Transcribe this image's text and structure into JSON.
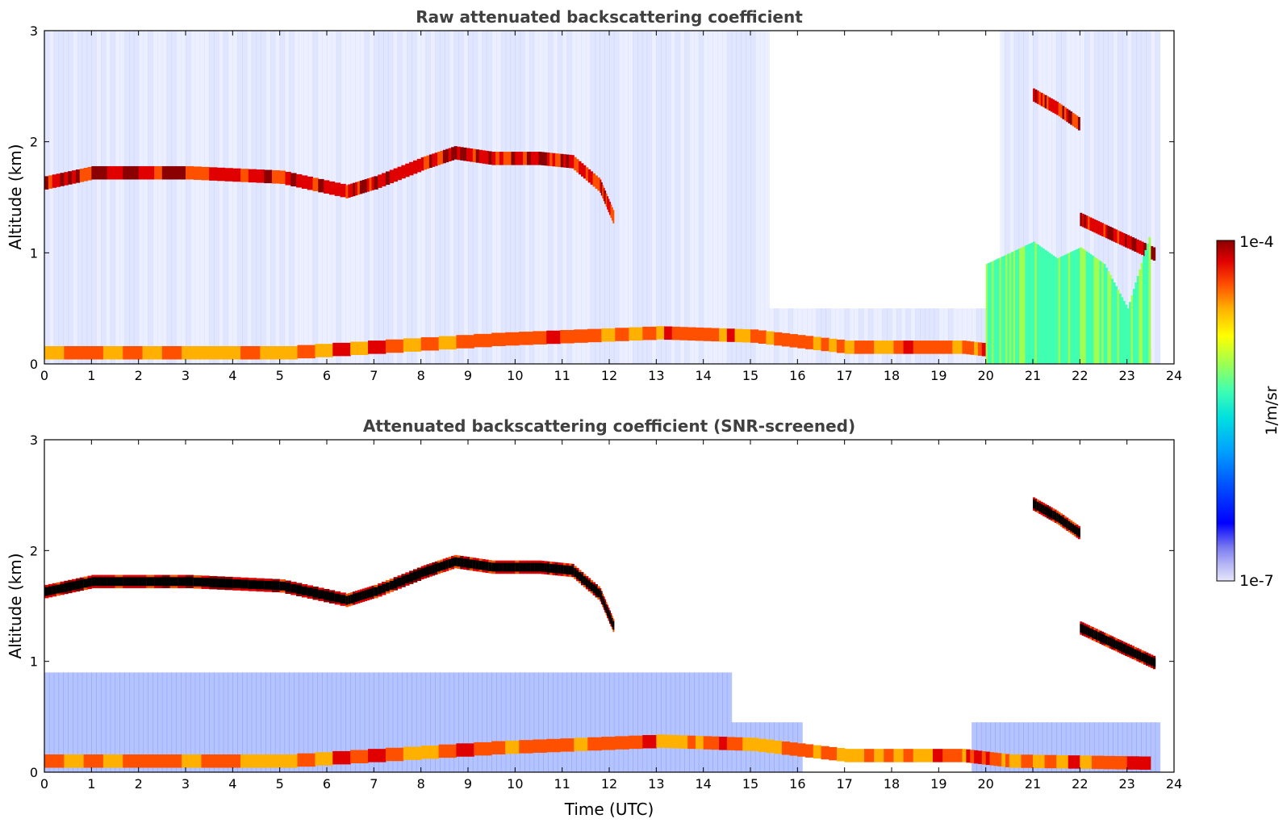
{
  "chart_data": [
    {
      "type": "heatmap",
      "title": "Raw attenuated backscattering coefficient",
      "xlabel": "",
      "ylabel": "Altitude (km)",
      "xlim": [
        0,
        24
      ],
      "ylim": [
        0,
        3
      ],
      "xticks": [
        "0",
        "1",
        "2",
        "3",
        "4",
        "5",
        "6",
        "7",
        "8",
        "9",
        "10",
        "11",
        "12",
        "13",
        "14",
        "15",
        "16",
        "17",
        "18",
        "19",
        "20",
        "21",
        "22",
        "23",
        "24"
      ],
      "yticks": [
        "0",
        "1",
        "2",
        "3"
      ],
      "features": [
        {
          "name": "boundary-layer cloud top",
          "x": [
            0,
            1,
            3,
            5,
            6.4,
            7,
            8,
            8.7,
            9.5,
            10.5,
            11.2,
            11.8,
            12.1
          ],
          "y": [
            1.63,
            1.72,
            1.72,
            1.68,
            1.55,
            1.63,
            1.8,
            1.9,
            1.85,
            1.85,
            1.82,
            1.6,
            1.3
          ],
          "intensity": 1.0
        },
        {
          "name": "upper cloud 21-22h",
          "x": [
            21.0,
            21.5,
            22.0
          ],
          "y": [
            2.42,
            2.3,
            2.15
          ],
          "intensity": 1.0
        },
        {
          "name": "mid cloud 22-23.7h",
          "x": [
            22.0,
            22.5,
            23.0,
            23.6
          ],
          "y": [
            1.3,
            1.2,
            1.1,
            0.98
          ],
          "intensity": 1.0
        },
        {
          "name": "near-surface layer",
          "x": [
            0,
            5,
            9.5,
            13,
            15,
            17,
            19.5,
            20.5,
            23.5
          ],
          "y": [
            0.1,
            0.1,
            0.22,
            0.28,
            0.25,
            0.15,
            0.15,
            0.1,
            0.08
          ],
          "intensity": 0.9
        },
        {
          "name": "precipitation 20-23.7h",
          "x": [
            20.0,
            20.5,
            21.0,
            21.5,
            22.0,
            22.5,
            23.0,
            23.5
          ],
          "y": [
            0.9,
            1.0,
            1.1,
            0.95,
            1.05,
            0.9,
            0.5,
            1.2
          ],
          "intensity": 0.6
        }
      ]
    },
    {
      "type": "heatmap",
      "title": "Attenuated backscattering coefficient (SNR-screened)",
      "xlabel": "Time (UTC)",
      "ylabel": "Altitude (km)",
      "xlim": [
        0,
        24
      ],
      "ylim": [
        0,
        3
      ],
      "xticks": [
        "0",
        "1",
        "2",
        "3",
        "4",
        "5",
        "6",
        "7",
        "8",
        "9",
        "10",
        "11",
        "12",
        "13",
        "14",
        "15",
        "16",
        "17",
        "18",
        "19",
        "20",
        "21",
        "22",
        "23",
        "24"
      ],
      "yticks": [
        "0",
        "1",
        "2",
        "3"
      ],
      "features": [
        {
          "name": "boundary-layer cloud top",
          "x": [
            0,
            1,
            3,
            5,
            6.4,
            7,
            8,
            8.7,
            9.5,
            10.5,
            11.2,
            11.8,
            12.1
          ],
          "y": [
            1.63,
            1.72,
            1.72,
            1.68,
            1.55,
            1.63,
            1.8,
            1.9,
            1.85,
            1.85,
            1.82,
            1.6,
            1.3
          ],
          "intensity": 1.0
        },
        {
          "name": "upper cloud 21-22h",
          "x": [
            21.0,
            21.5,
            22.0
          ],
          "y": [
            2.42,
            2.3,
            2.15
          ],
          "intensity": 1.0
        },
        {
          "name": "mid cloud 22-23.7h",
          "x": [
            22.0,
            22.5,
            23.0,
            23.6
          ],
          "y": [
            1.3,
            1.2,
            1.1,
            0.98
          ],
          "intensity": 1.0
        },
        {
          "name": "near-surface layer",
          "x": [
            0,
            5,
            9.5,
            13,
            15,
            17,
            19.5,
            20.5,
            23.5
          ],
          "y": [
            0.1,
            0.1,
            0.22,
            0.28,
            0.25,
            0.15,
            0.15,
            0.1,
            0.08
          ],
          "intensity": 0.9
        }
      ]
    }
  ],
  "colorbar": {
    "label": "1/m/sr",
    "max_label": "1e-4",
    "min_label": "1e-7",
    "colors": [
      "#e6e6fa",
      "#b4b4f5",
      "#7878f0",
      "#0000ff",
      "#0050ff",
      "#00a0ff",
      "#00e0e0",
      "#40ffb0",
      "#a0ff50",
      "#ffff00",
      "#ffb000",
      "#ff5000",
      "#e00000",
      "#8b0000"
    ]
  }
}
